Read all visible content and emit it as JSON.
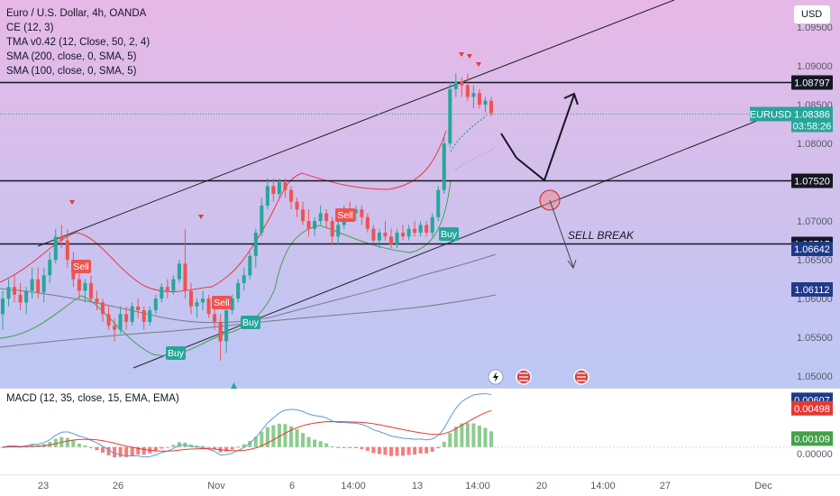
{
  "header": {
    "title": "Euro / U.S. Dollar, 4h, OANDA",
    "indicators": [
      "CE (12, 3)",
      "TMA v0.42 (12, Close, 50, 2, 4)",
      "SMA (200, close, 0, SMA, 5)",
      "SMA (100, close, 0, SMA, 5)"
    ],
    "currency_button": "USD"
  },
  "colors": {
    "bull": "#26a69a",
    "bear": "#ef5350",
    "upper_band": "#e53935",
    "lower_band": "#43a047",
    "sma": "#787b86",
    "macd_line": "#5b9bd5",
    "signal_line": "#e53935",
    "background_top": "#e7b8e6",
    "background_bottom": "#bcc8f5"
  },
  "chart_data": [
    {
      "type": "candlestick",
      "symbol": "EURUSD",
      "timeframe": "4h",
      "x_tick_labels": [
        "23",
        "26",
        "Nov",
        "6",
        "14:00",
        "13",
        "14:00",
        "20",
        "14:00",
        "27",
        "Dec"
      ],
      "y_tick_labels": [
        "1.09500",
        "1.09000",
        "1.08500",
        "1.08000",
        "1.07500",
        "1.07000",
        "1.06500",
        "1.06000",
        "1.05500",
        "1.05000"
      ],
      "ylim": [
        1.0485,
        1.0985
      ],
      "last_price": {
        "label": "EURUSD",
        "value": "1.08386",
        "countdown": "03:58:26"
      },
      "horizontal_levels": [
        "1.08797",
        "1.07520",
        "1.06715"
      ],
      "price_tags": [
        "1.06642",
        "1.06112"
      ],
      "signals": {
        "buy_label": "Buy",
        "sell_label": "Sell"
      },
      "annotation": "SELL BREAK",
      "candles_ohlc": [
        [
          1.058,
          1.061,
          1.056,
          1.06
        ],
        [
          1.06,
          1.0625,
          1.059,
          1.0615
        ],
        [
          1.0615,
          1.063,
          1.0595,
          1.0605
        ],
        [
          1.0605,
          1.062,
          1.0585,
          1.0595
        ],
        [
          1.0595,
          1.0615,
          1.058,
          1.061
        ],
        [
          1.061,
          1.064,
          1.06,
          1.0625
        ],
        [
          1.0625,
          1.064,
          1.06,
          1.0608
        ],
        [
          1.0608,
          1.064,
          1.0595,
          1.063
        ],
        [
          1.063,
          1.066,
          1.062,
          1.065
        ],
        [
          1.065,
          1.069,
          1.0645,
          1.068
        ],
        [
          1.068,
          1.0695,
          1.0665,
          1.0675
        ],
        [
          1.0675,
          1.069,
          1.064,
          1.065
        ],
        [
          1.065,
          1.066,
          1.0615,
          1.0625
        ],
        [
          1.0625,
          1.064,
          1.06,
          1.061
        ],
        [
          1.061,
          1.0625,
          1.0595,
          1.062
        ],
        [
          1.062,
          1.063,
          1.0595,
          1.06
        ],
        [
          1.06,
          1.061,
          1.0585,
          1.0595
        ],
        [
          1.0595,
          1.06,
          1.057,
          1.058
        ],
        [
          1.058,
          1.059,
          1.056,
          1.0565
        ],
        [
          1.0565,
          1.0575,
          1.0545,
          1.056
        ],
        [
          1.056,
          1.059,
          1.0555,
          1.058
        ],
        [
          1.058,
          1.059,
          1.056,
          1.057
        ],
        [
          1.057,
          1.0595,
          1.0565,
          1.059
        ],
        [
          1.059,
          1.06,
          1.0575,
          1.0585
        ],
        [
          1.0585,
          1.059,
          1.056,
          1.057
        ],
        [
          1.057,
          1.059,
          1.0565,
          1.0585
        ],
        [
          1.0585,
          1.0605,
          1.058,
          1.06
        ],
        [
          1.06,
          1.062,
          1.0595,
          1.0615
        ],
        [
          1.0615,
          1.0625,
          1.06,
          1.061
        ],
        [
          1.061,
          1.063,
          1.0605,
          1.0625
        ],
        [
          1.0625,
          1.065,
          1.062,
          1.0645
        ],
        [
          1.0645,
          1.069,
          1.06,
          1.061
        ],
        [
          1.061,
          1.062,
          1.058,
          1.059
        ],
        [
          1.059,
          1.06,
          1.0575,
          1.0595
        ],
        [
          1.0595,
          1.061,
          1.0585,
          1.06
        ],
        [
          1.06,
          1.0605,
          1.0575,
          1.058
        ],
        [
          1.058,
          1.059,
          1.056,
          1.057
        ],
        [
          1.057,
          1.058,
          1.052,
          1.0545
        ],
        [
          1.0545,
          1.059,
          1.053,
          1.0585
        ],
        [
          1.0585,
          1.0605,
          1.058,
          1.06
        ],
        [
          1.06,
          1.0625,
          1.0595,
          1.062
        ],
        [
          1.062,
          1.064,
          1.061,
          1.063
        ],
        [
          1.063,
          1.066,
          1.0625,
          1.0655
        ],
        [
          1.0655,
          1.069,
          1.064,
          1.0685
        ],
        [
          1.0685,
          1.073,
          1.068,
          1.072
        ],
        [
          1.072,
          1.0755,
          1.0715,
          1.0745
        ],
        [
          1.0745,
          1.0755,
          1.0725,
          1.0735
        ],
        [
          1.0735,
          1.0755,
          1.073,
          1.075
        ],
        [
          1.075,
          1.0755,
          1.073,
          1.074
        ],
        [
          1.074,
          1.0745,
          1.0715,
          1.0725
        ],
        [
          1.0725,
          1.073,
          1.0705,
          1.0715
        ],
        [
          1.0715,
          1.0725,
          1.0695,
          1.07
        ],
        [
          1.07,
          1.0715,
          1.068,
          1.069
        ],
        [
          1.069,
          1.0705,
          1.068,
          1.07
        ],
        [
          1.07,
          1.072,
          1.0695,
          1.071
        ],
        [
          1.071,
          1.0715,
          1.069,
          1.07
        ],
        [
          1.07,
          1.0705,
          1.067,
          1.068
        ],
        [
          1.068,
          1.07,
          1.067,
          1.0695
        ],
        [
          1.0695,
          1.072,
          1.069,
          1.0715
        ],
        [
          1.0715,
          1.0725,
          1.07,
          1.071
        ],
        [
          1.071,
          1.072,
          1.07,
          1.0715
        ],
        [
          1.0715,
          1.072,
          1.0695,
          1.0705
        ],
        [
          1.0705,
          1.071,
          1.0685,
          1.069
        ],
        [
          1.069,
          1.0695,
          1.067,
          1.0675
        ],
        [
          1.0675,
          1.069,
          1.0665,
          1.0685
        ],
        [
          1.0685,
          1.07,
          1.0675,
          1.068
        ],
        [
          1.068,
          1.069,
          1.0665,
          1.067
        ],
        [
          1.067,
          1.069,
          1.0665,
          1.0685
        ],
        [
          1.0685,
          1.0695,
          1.0675,
          1.068
        ],
        [
          1.068,
          1.0695,
          1.0675,
          1.069
        ],
        [
          1.069,
          1.07,
          1.068,
          1.0685
        ],
        [
          1.0685,
          1.07,
          1.068,
          1.0695
        ],
        [
          1.0695,
          1.07,
          1.068,
          1.0685
        ],
        [
          1.0685,
          1.071,
          1.068,
          1.0705
        ],
        [
          1.0705,
          1.0745,
          1.07,
          1.074
        ],
        [
          1.074,
          1.081,
          1.0735,
          1.08
        ],
        [
          1.08,
          1.088,
          1.0795,
          1.087
        ],
        [
          1.087,
          1.089,
          1.086,
          1.088
        ],
        [
          1.088,
          1.0885,
          1.086,
          1.0875
        ],
        [
          1.0875,
          1.089,
          1.0855,
          1.086
        ],
        [
          1.086,
          1.0875,
          1.0845,
          1.0865
        ],
        [
          1.0865,
          1.087,
          1.0845,
          1.085
        ],
        [
          1.085,
          1.086,
          1.084,
          1.0855
        ],
        [
          1.0855,
          1.086,
          1.0835,
          1.0839
        ]
      ]
    },
    {
      "type": "histogram+line",
      "name": "MACD (12, 35, close, 15, EMA, EMA)",
      "y_tick_labels": [
        "0.00000"
      ],
      "value_tags": [
        "0.00607",
        "0.00498",
        "0.00109"
      ],
      "ylim": [
        -0.0035,
        0.0075
      ]
    }
  ]
}
